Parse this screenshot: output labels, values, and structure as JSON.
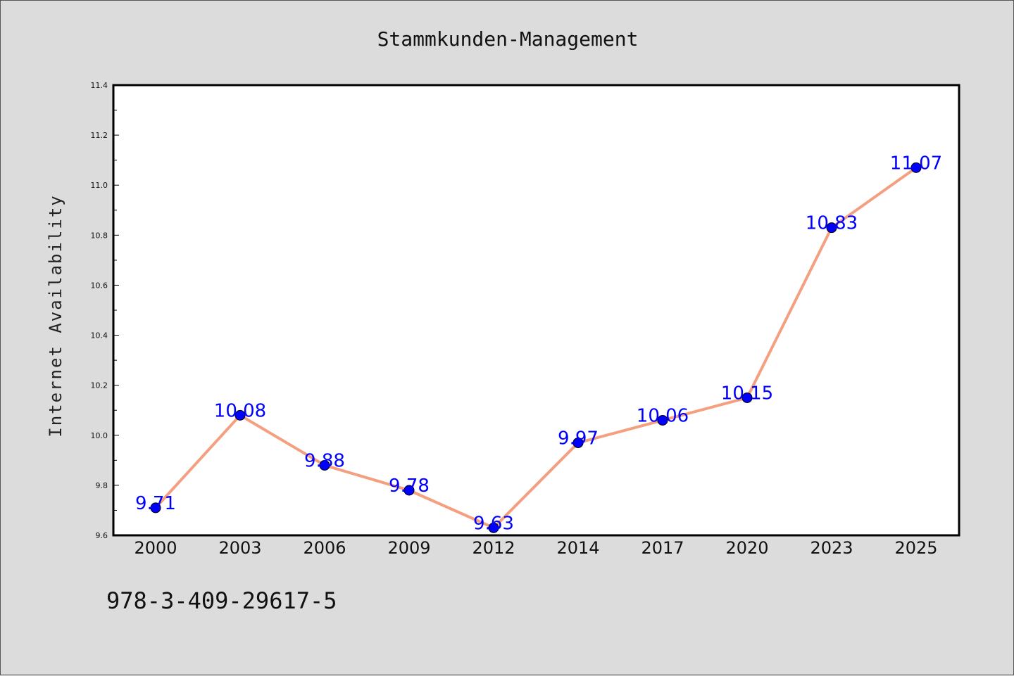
{
  "chart_data": {
    "type": "line",
    "title": "Stammkunden-Management",
    "xlabel": "",
    "ylabel": "Internet Availability",
    "categories": [
      "2000",
      "2003",
      "2006",
      "2009",
      "2012",
      "2014",
      "2017",
      "2020",
      "2023",
      "2025"
    ],
    "values": [
      9.71,
      10.08,
      9.88,
      9.78,
      9.63,
      9.97,
      10.06,
      10.15,
      10.83,
      11.07
    ],
    "data_labels": [
      "9.71",
      "10.08",
      "9.88",
      "9.78",
      "9.63",
      "9.97",
      "10.06",
      "10.15",
      "10.83",
      "11.07"
    ],
    "ylim": [
      9.6,
      11.4
    ],
    "yticks": [
      "9.6",
      "9.8",
      "10.0",
      "10.2",
      "10.4",
      "10.6",
      "10.8",
      "11.0",
      "11.2",
      "11.4"
    ],
    "grid": false,
    "legend": "none",
    "line_color": "#f4a080",
    "marker_color": "#0000ff",
    "label_color": "#0000ff",
    "plot_background": "#ffffff",
    "page_background": "#dcdcdc"
  },
  "footer": {
    "isbn": "978-3-409-29617-5"
  }
}
